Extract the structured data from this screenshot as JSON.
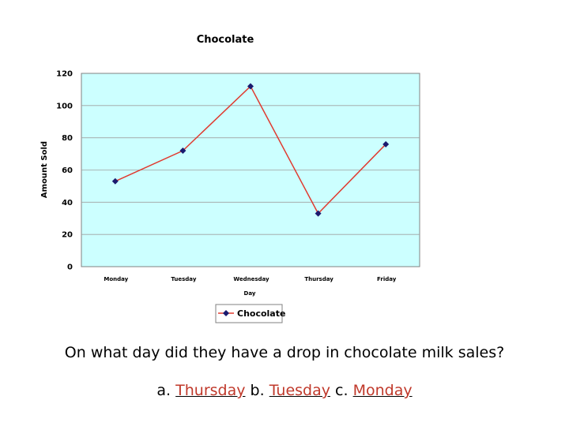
{
  "chart_data": {
    "type": "line",
    "title": "Chocolate",
    "xlabel": "Day",
    "ylabel": "Amount Sold",
    "categories": [
      "Monday",
      "Tuesday",
      "Wednesday",
      "Thursday",
      "Friday"
    ],
    "series": [
      {
        "name": "Chocolate",
        "values": [
          53,
          72,
          112,
          33,
          76
        ],
        "color": "#e03a2f",
        "marker_color": "#1a1a6e"
      }
    ],
    "ylim": [
      0,
      120
    ],
    "yticks": [
      "0",
      "20",
      "40",
      "60",
      "80",
      "100",
      "120"
    ],
    "grid": true,
    "plot_background": "#ccffff",
    "legend_position": "bottom"
  },
  "question": {
    "text": "On what day did they have a drop in chocolate milk sales?",
    "options": [
      {
        "prefix": "a.",
        "label": "Thursday"
      },
      {
        "prefix": "b.",
        "label": "Tuesday"
      },
      {
        "prefix": "c.",
        "label": "Monday"
      }
    ]
  }
}
